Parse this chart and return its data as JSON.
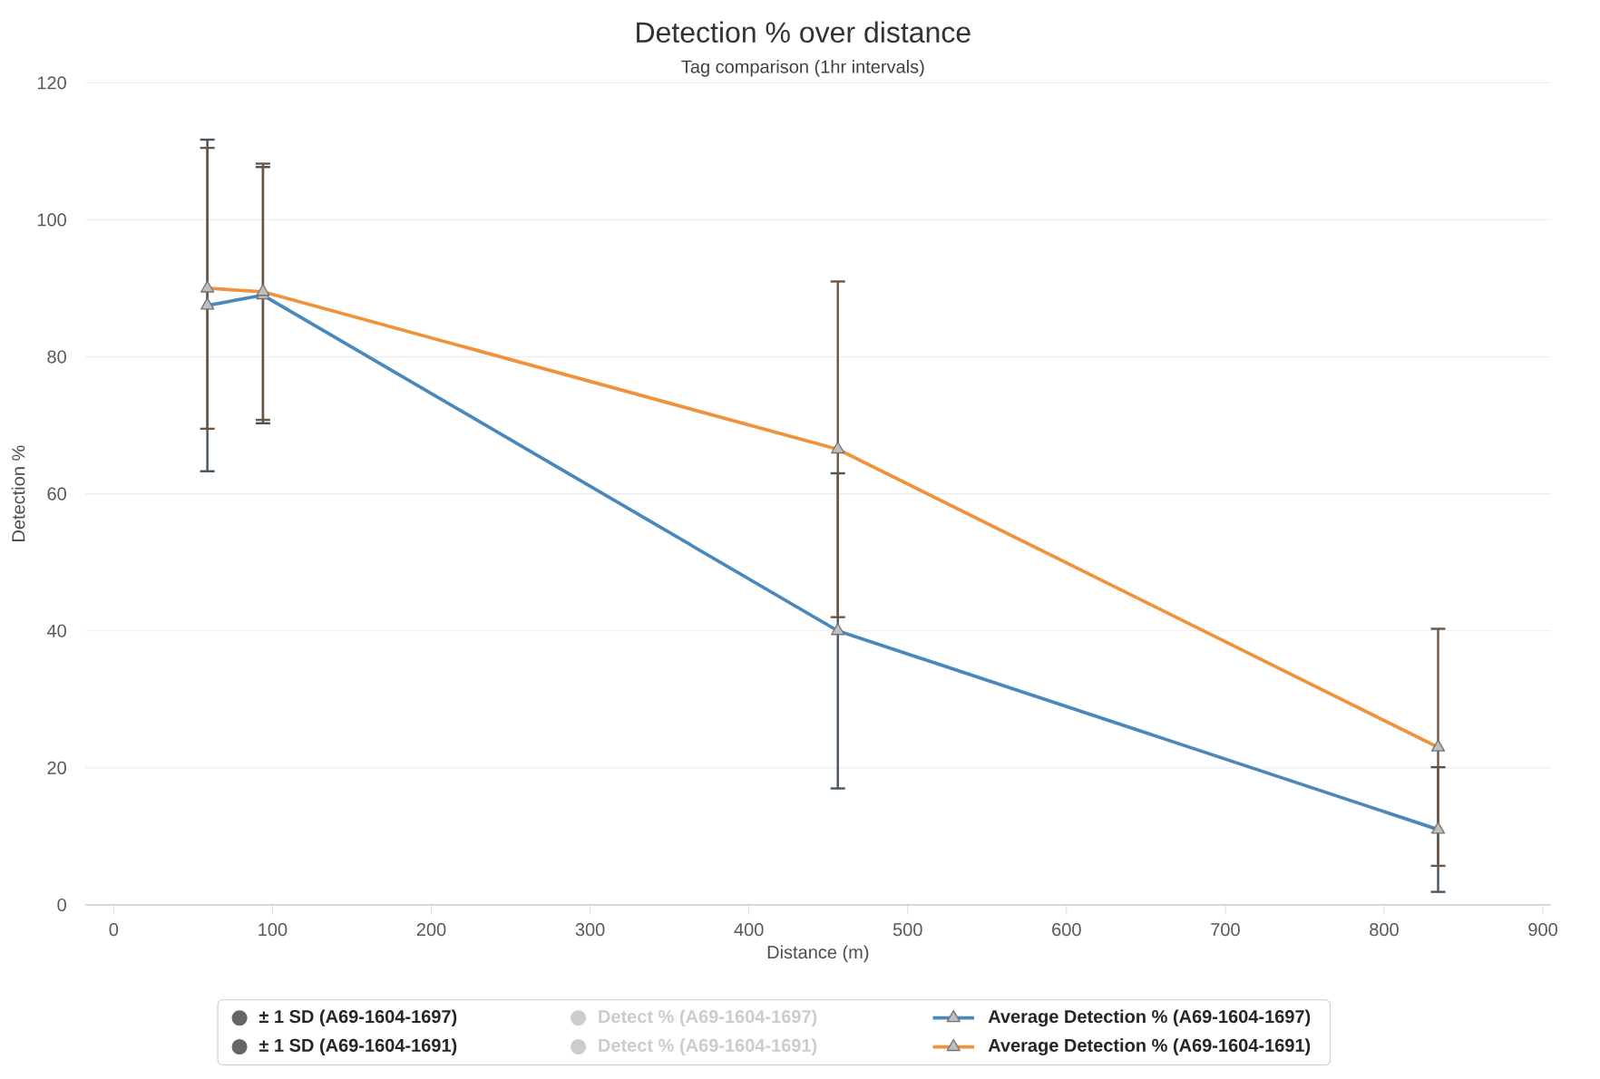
{
  "chart_data": {
    "type": "line",
    "title": "Detection % over distance",
    "subtitle": "Tag comparison (1hr intervals)",
    "xlabel": "Distance (m)",
    "ylabel": "Detection %",
    "x": [
      59,
      94,
      456,
      834
    ],
    "xlim": [
      -18,
      905
    ],
    "xticks": [
      0,
      100,
      200,
      300,
      400,
      500,
      600,
      700,
      800,
      900
    ],
    "ylim": [
      0,
      120
    ],
    "yticks": [
      0,
      20,
      40,
      60,
      80,
      100,
      120
    ],
    "grid": "y",
    "legend": "bottom",
    "marker": "triangle",
    "line_style": "solid",
    "series": [
      {
        "name": "± 1 SD (A69-1604-1697)",
        "type": "scatter",
        "color": "#666666",
        "values": [
          null,
          null,
          null,
          null
        ]
      },
      {
        "name": "Detect % (A69-1604-1697)",
        "type": "scatter",
        "color": "#cccccc",
        "values": [
          null,
          null,
          null,
          null
        ]
      },
      {
        "name": "Average Detection % (A69-1604-1697)",
        "color": "#4a88bb",
        "values": [
          87.5,
          89,
          40,
          11
        ],
        "errors": [
          24.2,
          18.7,
          23,
          9.1
        ]
      },
      {
        "name": "± 1 SD (A69-1604-1691)",
        "type": "scatter",
        "color": "#666666",
        "values": [
          null,
          null,
          null,
          null
        ]
      },
      {
        "name": "Detect % (A69-1604-1691)",
        "type": "scatter",
        "color": "#cccccc",
        "values": [
          null,
          null,
          null,
          null
        ]
      },
      {
        "name": "Average Detection % (A69-1604-1691)",
        "color": "#f0923b",
        "values": [
          90,
          89.5,
          66.5,
          23
        ],
        "errors": [
          20.5,
          18.7,
          24.5,
          17.3
        ]
      }
    ]
  }
}
